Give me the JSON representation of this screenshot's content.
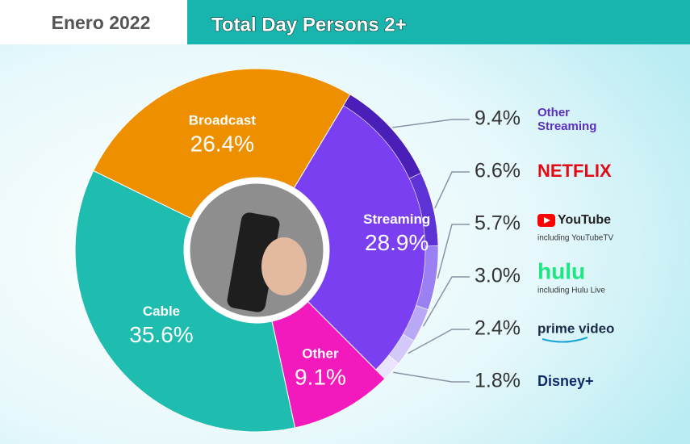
{
  "header": {
    "date": "Enero 2022",
    "title": "Total Day Persons 2+"
  },
  "chart_data": {
    "type": "pie",
    "categories": [
      "Broadcast",
      "Streaming",
      "Other",
      "Cable"
    ],
    "values": [
      26.4,
      28.9,
      9.1,
      35.6
    ],
    "value_labels": [
      "26.4%",
      "28.9%",
      "9.1%",
      "35.6%"
    ],
    "colors": [
      "#ee8f00",
      "#7b3ff2",
      "#f219bd",
      "#1fbcb0"
    ],
    "streaming_breakdown": {
      "categories": [
        "Other Streaming",
        "NETFLIX",
        "YouTube",
        "hulu",
        "prime video",
        "Disney+"
      ],
      "sublabels": [
        null,
        null,
        "including YouTubeTV",
        "including Hulu Live",
        null,
        null
      ],
      "values": [
        9.4,
        6.6,
        5.7,
        3.0,
        2.4,
        1.8
      ],
      "value_labels": [
        "9.4%",
        "6.6%",
        "5.7%",
        "3.0%",
        "2.4%",
        "1.8%"
      ],
      "colors": [
        "#4a1fb8",
        "#5d33d6",
        "#9a80f2",
        "#b9a8f6",
        "#d3c9f9",
        "#e9e4fc"
      ]
    }
  }
}
